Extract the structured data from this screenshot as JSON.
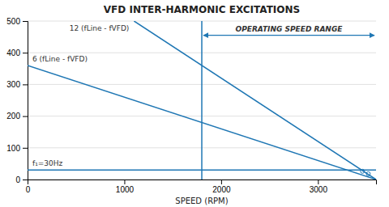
{
  "chart_data": {
    "type": "line",
    "title": "VFD INTER-HARMONIC EXCITATIONS",
    "xlabel": "SPEED (RPM)",
    "xlim": [
      0,
      3600
    ],
    "ylim": [
      0,
      500
    ],
    "xticks": [
      0,
      1000,
      2000,
      3000
    ],
    "yticks": [
      0,
      100,
      200,
      300,
      400,
      500
    ],
    "grid": true,
    "series": [
      {
        "name": "f₁=30Hz",
        "x": [
          0,
          3600
        ],
        "values": [
          30,
          30
        ]
      },
      {
        "name": "6 (fLine - fVFD)",
        "x": [
          0,
          3600
        ],
        "values": [
          360,
          0
        ]
      },
      {
        "name": "12 (fLine - fVFD)",
        "x": [
          1100,
          3600
        ],
        "values": [
          500,
          0
        ]
      },
      {
        "x": [
          1800,
          1800
        ],
        "values": [
          0,
          500
        ]
      },
      {
        "type": "scatter",
        "marker": "circle",
        "x": [
          3460,
          3520
        ],
        "values": [
          26,
          18
        ]
      }
    ],
    "annotations": [
      {
        "text": "OPERATING SPEED RANGE",
        "x": [
          1800,
          3600
        ],
        "y": 455
      }
    ]
  }
}
